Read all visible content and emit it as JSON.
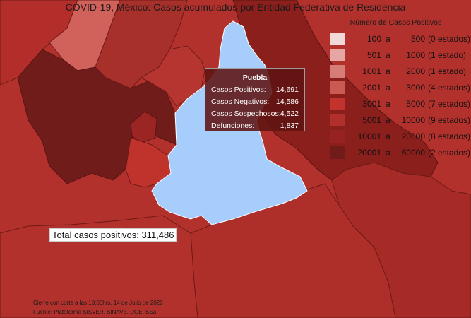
{
  "title": "COVID-19, México: Casos acumulados por Entidad Federativa de Residencia",
  "legend": {
    "title": "Número de Casos Positivos",
    "items": [
      {
        "from": "100",
        "to": "500",
        "count": "(0 estados)",
        "color": "#f2d9d8"
      },
      {
        "from": "501",
        "to": "1000",
        "count": "(1 estado)",
        "color": "#e6a7a4"
      },
      {
        "from": "1001",
        "to": "2000",
        "count": "(1 estado)",
        "color": "#d67d78"
      },
      {
        "from": "2001",
        "to": "3000",
        "count": "(4 estados)",
        "color": "#c95a54"
      },
      {
        "from": "3001",
        "to": "5000",
        "count": "(7 estados)",
        "color": "#c2332d"
      },
      {
        "from": "5001",
        "to": "10000",
        "count": "(9 estados)",
        "color": "#b0302b"
      },
      {
        "from": "10001",
        "to": "20000",
        "count": "(8 estados)",
        "color": "#97221f"
      },
      {
        "from": "20001",
        "to": "60000",
        "count": "(2 estados)",
        "color": "#6f1c1a"
      }
    ],
    "connector": "a"
  },
  "tooltip": {
    "title": "Puebla",
    "rows": [
      {
        "label": "Casos Positivos:",
        "value": "14,691"
      },
      {
        "label": "Casos Negativos:",
        "value": "14,586"
      },
      {
        "label": "Casos Sospechosos:",
        "value": "4,522"
      },
      {
        "label": "Defunciones:",
        "value": "1,837"
      }
    ]
  },
  "total": "Total casos positivos: 311,486",
  "footer": {
    "line1": "Cierre con corte a las 13:00hrs, 14 de Julio de 2020",
    "line2": "Fuente: Plataforma SISVER, SINAVE, DGE, SSa"
  },
  "colors": {
    "highlight": "#a6cdfb",
    "border": "#6e1a18"
  }
}
